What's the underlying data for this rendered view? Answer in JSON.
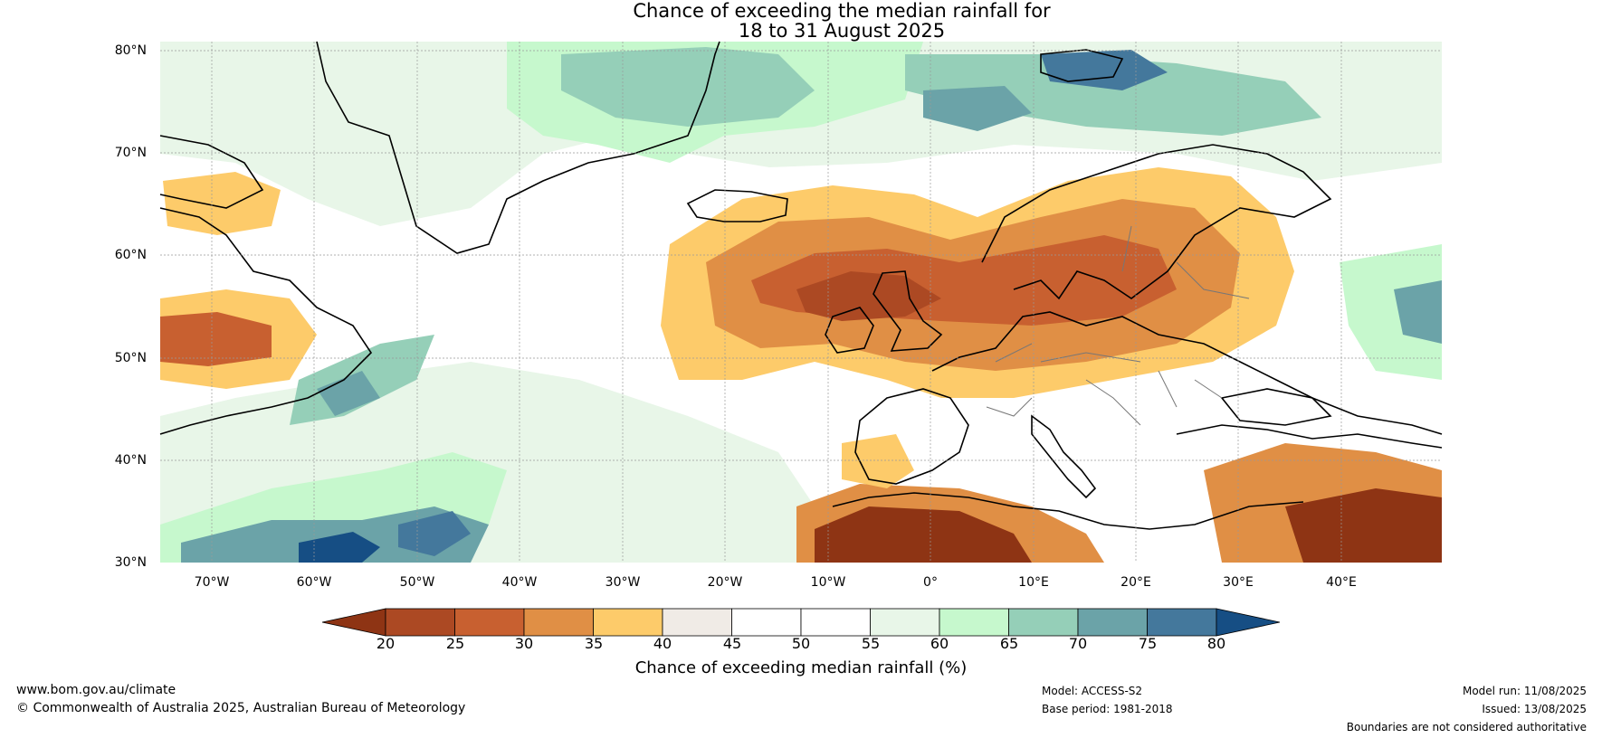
{
  "title": {
    "line1": "Chance of exceeding the median rainfall for",
    "line2": "18 to 31 August 2025"
  },
  "lat_labels": [
    "80°N",
    "70°N",
    "60°N",
    "50°N",
    "40°N",
    "30°N"
  ],
  "lon_labels": [
    "70°W",
    "60°W",
    "50°W",
    "40°W",
    "30°W",
    "20°W",
    "10°W",
    "0°",
    "10°E",
    "20°E",
    "30°E",
    "40°E"
  ],
  "colorbar": {
    "ticks": [
      "20",
      "25",
      "30",
      "35",
      "40",
      "45",
      "50",
      "55",
      "60",
      "65",
      "70",
      "75",
      "80"
    ],
    "colors": [
      "#8e3414",
      "#ac4923",
      "#c86030",
      "#e08f45",
      "#fdcb6a",
      "#f0ebe6",
      "#ffffff",
      "#ffffff",
      "#e8f6e8",
      "#c6f8cd",
      "#95cfb8",
      "#6ba3a8",
      "#44789c",
      "#164e84"
    ],
    "title": "Chance of exceeding median rainfall (%)"
  },
  "footer": {
    "url": "www.bom.gov.au/climate",
    "copyright": "© Commonwealth of Australia 2025, Australian Bureau of Meteorology",
    "model": "Model: ACCESS-S2",
    "base_period": "Base period: 1981-2018",
    "model_run": "Model run: 11/08/2025",
    "issued": "Issued: 13/08/2025",
    "disclaimer": "Boundaries are not considered authoritative"
  }
}
